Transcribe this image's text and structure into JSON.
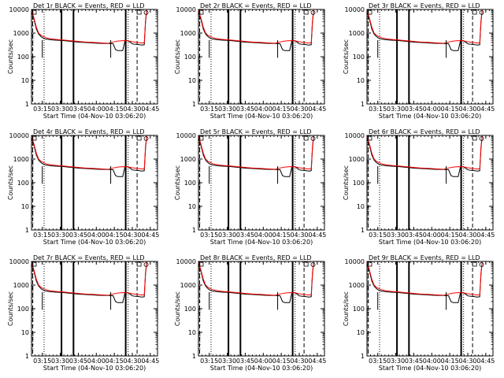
{
  "chart_data": {
    "type": "line",
    "panels": [
      {
        "title": "Det 1r BLACK = Events, RED = LLD"
      },
      {
        "title": "Det 2r BLACK = Events, RED = LLD"
      },
      {
        "title": "Det 3r BLACK = Events, RED = LLD"
      },
      {
        "title": "Det 4r BLACK = Events, RED = LLD"
      },
      {
        "title": "Det 5r BLACK = Events, RED = LLD"
      },
      {
        "title": "Det 6r BLACK = Events, RED = LLD"
      },
      {
        "title": "Det 7r BLACK = Events, RED = LLD"
      },
      {
        "title": "Det 8r BLACK = Events, RED = LLD"
      },
      {
        "title": "Det 9r BLACK = Events, RED = LLD"
      }
    ],
    "xlabel": "Start Time (04-Nov-10 03:06:20)",
    "ylabel": "Counts/sec",
    "y_scale": "log",
    "ylim": [
      1,
      10000
    ],
    "y_tick_labels": [
      "1",
      "10",
      "100",
      "1000",
      "10000"
    ],
    "x_tick_labels": [
      "03:15",
      "03:30",
      "03:45",
      "04:00",
      "04:15",
      "04:30",
      "04:45"
    ],
    "xlim_minutes": [
      0,
      105
    ],
    "series": [
      {
        "name": "Events",
        "color": "#000000",
        "x_minutes": [
          0,
          2,
          4,
          6,
          8,
          10,
          12,
          14,
          16,
          18,
          20,
          24,
          28,
          32,
          36,
          40,
          44,
          48,
          52,
          56,
          60,
          64,
          68,
          70,
          72,
          74,
          76,
          78,
          80,
          82,
          84,
          86,
          88,
          90,
          92,
          94,
          95,
          96
        ],
        "values": [
          8000,
          4000,
          1500,
          900,
          700,
          600,
          560,
          540,
          520,
          510,
          500,
          490,
          470,
          450,
          430,
          410,
          400,
          390,
          380,
          370,
          365,
          360,
          355,
          200,
          180,
          180,
          180,
          500,
          470,
          420,
          350,
          340,
          330,
          320,
          310,
          320,
          3000,
          9000
        ]
      },
      {
        "name": "LLD",
        "color": "#ff0000",
        "x_minutes": [
          0,
          2,
          4,
          6,
          8,
          10,
          12,
          14,
          16,
          18,
          20,
          24,
          28,
          32,
          36,
          40,
          44,
          48,
          52,
          56,
          60,
          64,
          68,
          72,
          76,
          80,
          84,
          88,
          92,
          94,
          95,
          96
        ],
        "values": [
          9000,
          4500,
          1800,
          1000,
          800,
          700,
          640,
          600,
          580,
          560,
          540,
          520,
          500,
          480,
          460,
          440,
          420,
          410,
          400,
          390,
          380,
          370,
          420,
          460,
          480,
          470,
          430,
          400,
          380,
          390,
          3500,
          9500
        ]
      }
    ],
    "dropouts_minutes": [
      9,
      66
    ],
    "dropout_value": 90,
    "vertical_lines": [
      {
        "x_minutes": 10.5,
        "style": "dotted"
      },
      {
        "x_minutes": 25,
        "style": "solid-thick"
      },
      {
        "x_minutes": 35,
        "style": "solid-thick"
      },
      {
        "x_minutes": 78.5,
        "style": "solid-thick"
      },
      {
        "x_minutes": 80.5,
        "style": "dotted"
      },
      {
        "x_minutes": 88,
        "style": "dashed"
      },
      {
        "x_minutes": 1,
        "style": "dashed"
      }
    ]
  }
}
